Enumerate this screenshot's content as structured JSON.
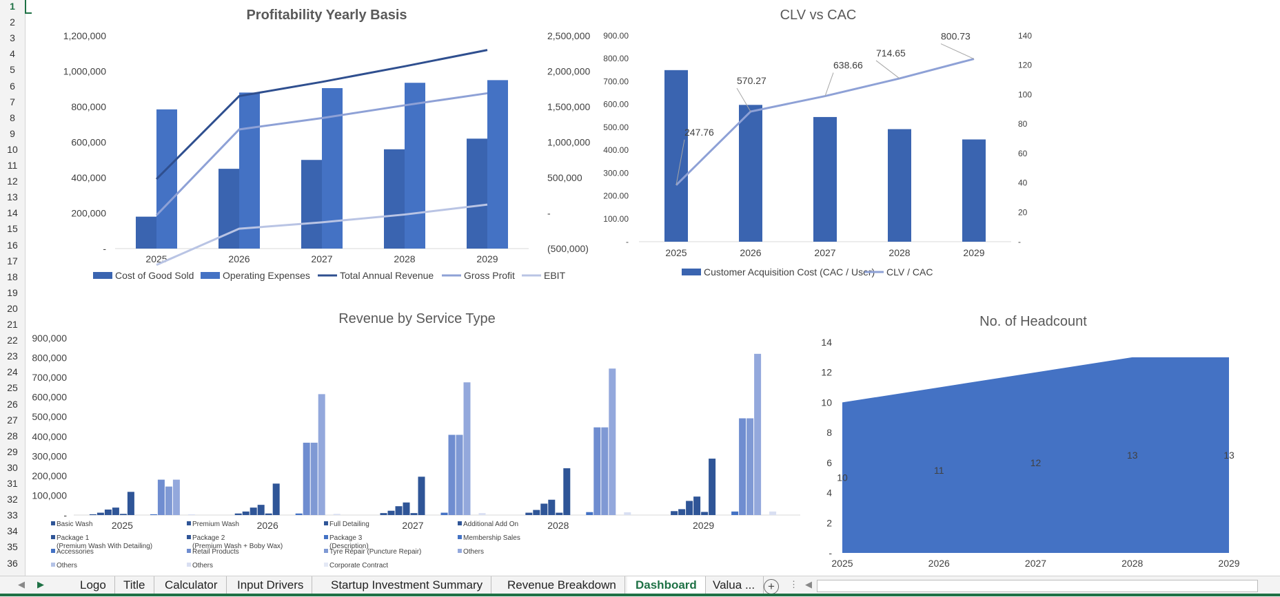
{
  "app": {
    "accent": "#1e7145"
  },
  "row_numbers": [
    "1",
    "2",
    "3",
    "4",
    "5",
    "6",
    "7",
    "8",
    "9",
    "10",
    "11",
    "12",
    "13",
    "14",
    "15",
    "16",
    "17",
    "18",
    "19",
    "20",
    "21",
    "22",
    "23",
    "24",
    "25",
    "26",
    "27",
    "28",
    "29",
    "30",
    "31",
    "32",
    "33",
    "34",
    "35",
    "36"
  ],
  "tabs": [
    {
      "label": "Logo",
      "active": false
    },
    {
      "label": "Title",
      "active": false
    },
    {
      "label": "Calculator",
      "active": false
    },
    {
      "label": "Input Drivers",
      "active": false
    },
    {
      "label": "Startup Investment Summary",
      "active": false
    },
    {
      "label": "Revenue Breakdown",
      "active": false
    },
    {
      "label": "Dashboard",
      "active": true
    },
    {
      "label": "Valua ...",
      "active": false
    }
  ],
  "chart_data": [
    {
      "type": "bar",
      "title": "Profitability Yearly Basis",
      "categories": [
        "2025",
        "2026",
        "2027",
        "2028",
        "2029"
      ],
      "y_left_ticks": [
        "-",
        "200,000",
        "400,000",
        "600,000",
        "800,000",
        "1,000,000",
        "1,200,000"
      ],
      "y_right_ticks": [
        "(500,000)",
        "-",
        "500,000",
        "1,000,000",
        "1,500,000",
        "2,000,000",
        "2,500,000"
      ],
      "ylim_left": [
        0,
        1200000
      ],
      "ylim_right": [
        -500000,
        2500000
      ],
      "bar_series": [
        {
          "name": "Cost of Good Sold",
          "color": "#3a64b0",
          "values": [
            180000,
            450000,
            500000,
            560000,
            620000
          ]
        },
        {
          "name": "Operating Expenses",
          "color": "#4472c4",
          "values": [
            785000,
            880000,
            905000,
            935000,
            950000
          ]
        }
      ],
      "line_series": [
        {
          "name": "Total Annual Revenue",
          "color": "#2f4f8f",
          "values": [
            480000,
            1650000,
            1850000,
            2070000,
            2300000
          ]
        },
        {
          "name": "Gross Profit",
          "color": "#8ea1d6",
          "values": [
            -30000,
            1180000,
            1340000,
            1520000,
            1690000
          ]
        },
        {
          "name": "EBIT",
          "color": "#b9c4e4",
          "values": [
            -730000,
            -220000,
            -130000,
            -20000,
            120000
          ]
        }
      ],
      "legend": [
        "Cost of Good Sold",
        "Operating Expenses",
        "Total Annual Revenue",
        "Gross Profit",
        "EBIT"
      ],
      "legend_position": "bottom"
    },
    {
      "type": "bar",
      "title": "CLV vs CAC",
      "categories": [
        "2025",
        "2026",
        "2027",
        "2028",
        "2029"
      ],
      "y_left_ticks": [
        "-",
        "100.00",
        "200.00",
        "300.00",
        "400.00",
        "500.00",
        "600.00",
        "700.00",
        "800.00",
        "900.00"
      ],
      "y_right_ticks": [
        "-",
        "20",
        "40",
        "60",
        "80",
        "100",
        "120",
        "140"
      ],
      "ylim_left": [
        0,
        900
      ],
      "ylim_right": [
        0,
        140
      ],
      "bar_series": [
        {
          "name": "Customer Acquisition  Cost (CAC / User)",
          "color": "#3a64b0",
          "values": [
            750,
            598,
            545,
            492,
            447
          ]
        }
      ],
      "line_series": [
        {
          "name": "CLV / CAC",
          "color": "#8ea1d6",
          "values": [
            38.5,
            88.5,
            99,
            111,
            124.3
          ]
        }
      ],
      "data_labels": [
        "247.76",
        "570.27",
        "638.66",
        "714.65",
        "800.73"
      ],
      "legend": [
        "Customer Acquisition  Cost (CAC / User)",
        "CLV / CAC"
      ],
      "legend_position": "bottom"
    },
    {
      "type": "bar",
      "title": "Revenue by Service Type",
      "categories": [
        "2025",
        "2026",
        "2027",
        "2028",
        "2029"
      ],
      "y_ticks": [
        "-",
        "100,000",
        "200,000",
        "300,000",
        "400,000",
        "500,000",
        "600,000",
        "700,000",
        "800,000",
        "900,000"
      ],
      "ylim": [
        0,
        900000
      ],
      "series": [
        {
          "name": "Basic Wash",
          "color": "#2f5597",
          "values": [
            4000,
            8000,
            10000,
            12000,
            20000
          ]
        },
        {
          "name": "Premium Wash",
          "color": "#2f5597",
          "values": [
            12000,
            18000,
            22000,
            26000,
            30000
          ]
        },
        {
          "name": "Full Detailing",
          "color": "#2f5597",
          "values": [
            28000,
            38000,
            45000,
            58000,
            72000
          ]
        },
        {
          "name": "Additional Add On",
          "color": "#2f5597",
          "values": [
            38000,
            52000,
            64000,
            78000,
            94000
          ]
        },
        {
          "name": "Package 1\n(Premium Wash With Detailing)",
          "color": "#2f5597",
          "values": [
            6000,
            8000,
            10000,
            12000,
            16000
          ]
        },
        {
          "name": "Package 2\n(Premium Wash + Boby Wax)",
          "color": "#2f5597",
          "values": [
            118000,
            160000,
            195000,
            238000,
            287000
          ]
        },
        {
          "name": "Package 3\n(Description)",
          "color": "#4472c4",
          "values": [
            0,
            0,
            0,
            0,
            0
          ]
        },
        {
          "name": "Membership Sales",
          "color": "#4472c4",
          "values": [
            0,
            0,
            0,
            0,
            0
          ]
        },
        {
          "name": "Accessories",
          "color": "#4472c4",
          "values": [
            4000,
            8000,
            12000,
            15000,
            18000
          ]
        },
        {
          "name": "Retail Products",
          "color": "#6f8dd0",
          "values": [
            180000,
            368000,
            408000,
            446000,
            492000
          ]
        },
        {
          "name": "Tyre Repair (Puncture Repair)",
          "color": "#7f99d4",
          "values": [
            145000,
            368000,
            408000,
            446000,
            492000
          ]
        },
        {
          "name": "Others",
          "color": "#93a8dc",
          "values": [
            180000,
            615000,
            675000,
            745000,
            820000
          ]
        },
        {
          "name": "Others",
          "color": "#b4c2e6",
          "values": [
            0,
            0,
            0,
            0,
            0
          ]
        },
        {
          "name": "Others",
          "color": "#d9dff2",
          "values": [
            4000,
            6000,
            10000,
            14000,
            18000
          ]
        },
        {
          "name": "Corporate Contract",
          "color": "#e3e8f5",
          "values": [
            0,
            0,
            0,
            0,
            0
          ]
        }
      ],
      "legend": [
        "Basic Wash",
        "Premium Wash",
        "Full Detailing",
        "Additional Add On",
        "Package 1\n(Premium Wash With Detailing)",
        "Package 2\n(Premium Wash + Boby Wax)",
        "Package 3\n(Description)",
        "Membership Sales",
        "Accessories",
        "Retail Products",
        "Tyre Repair (Puncture Repair)",
        "Others",
        "Others",
        "Others",
        "Corporate Contract"
      ],
      "legend_position": "bottom"
    },
    {
      "type": "area",
      "title": "No. of Headcount",
      "categories": [
        "2025",
        "2026",
        "2027",
        "2028",
        "2029"
      ],
      "values": [
        10,
        11,
        12,
        13,
        13
      ],
      "data_labels": [
        "10",
        "11",
        "12",
        "13",
        "13"
      ],
      "y_ticks": [
        "-",
        "2",
        "4",
        "6",
        "8",
        "10",
        "12",
        "14"
      ],
      "ylim": [
        0,
        14
      ],
      "color": "#4472c4"
    }
  ]
}
